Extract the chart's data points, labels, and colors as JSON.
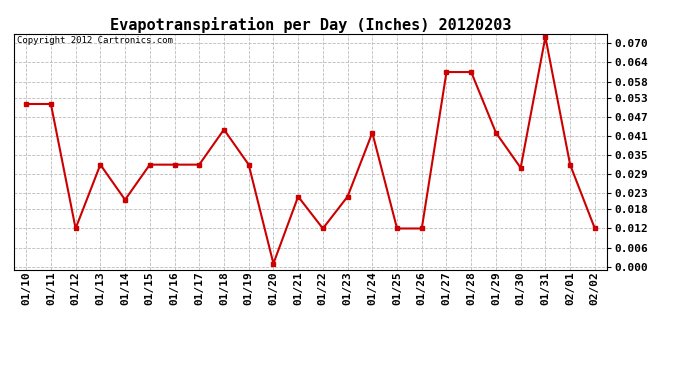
{
  "title": "Evapotranspiration per Day (Inches) 20120203",
  "copyright": "Copyright 2012 Cartronics.com",
  "dates": [
    "01/10",
    "01/11",
    "01/12",
    "01/13",
    "01/14",
    "01/15",
    "01/16",
    "01/17",
    "01/18",
    "01/19",
    "01/20",
    "01/21",
    "01/22",
    "01/23",
    "01/24",
    "01/25",
    "01/26",
    "01/27",
    "01/28",
    "01/29",
    "01/30",
    "01/31",
    "02/01",
    "02/02"
  ],
  "values": [
    0.051,
    0.051,
    0.012,
    0.032,
    0.021,
    0.032,
    0.032,
    0.032,
    0.043,
    0.032,
    0.001,
    0.022,
    0.012,
    0.022,
    0.042,
    0.012,
    0.012,
    0.061,
    0.061,
    0.042,
    0.031,
    0.072,
    0.032,
    0.012
  ],
  "line_color": "#cc0000",
  "marker": "s",
  "marker_size": 3,
  "ylim": [
    -0.001,
    0.073
  ],
  "yticks": [
    0.0,
    0.006,
    0.012,
    0.018,
    0.023,
    0.029,
    0.035,
    0.041,
    0.047,
    0.053,
    0.058,
    0.064,
    0.07
  ],
  "bg_color": "#ffffff",
  "grid_color": "#bbbbbb",
  "title_fontsize": 11,
  "tick_fontsize": 8,
  "copyright_fontsize": 6.5
}
